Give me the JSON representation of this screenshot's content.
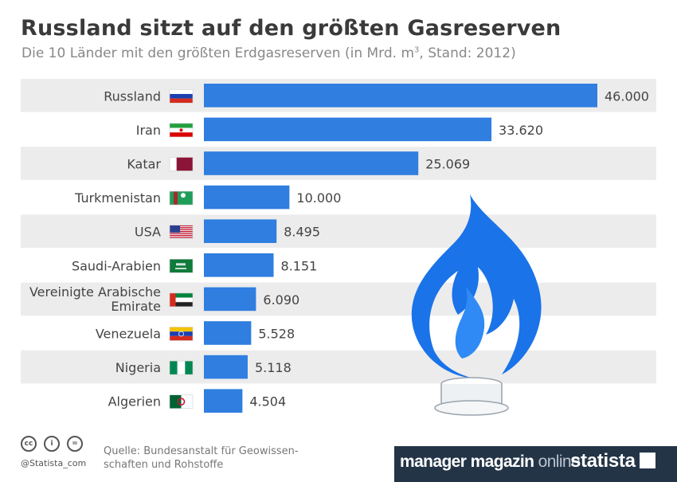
{
  "header": {
    "title": "Russland sitzt auf den größten Gasreserven",
    "subtitle_main": "Die 10 Länder mit den größten Erdgasreserven (in Mrd. m",
    "subtitle_sup": "3",
    "subtitle_end": ", Stand: 2012)"
  },
  "chart_data": {
    "type": "bar",
    "orientation": "horizontal",
    "title": "Russland sitzt auf den größten Gasreserven",
    "subtitle": "Die 10 Länder mit den größten Erdgasreserven (in Mrd. m³, Stand: 2012)",
    "unit": "Mrd. m³",
    "xlim": [
      0,
      46000
    ],
    "bar_color": "#2f7ee0",
    "band_color": "#ececec",
    "categories": [
      "Russland",
      "Iran",
      "Katar",
      "Turkmenistan",
      "USA",
      "Saudi-Arabien",
      "Vereinigte Arabische Emirate",
      "Venezuela",
      "Nigeria",
      "Algerien"
    ],
    "label_lines": [
      [
        "Russland"
      ],
      [
        "Iran"
      ],
      [
        "Katar"
      ],
      [
        "Turkmenistan"
      ],
      [
        "USA"
      ],
      [
        "Saudi-Arabien"
      ],
      [
        "Vereinigte Arabische",
        "Emirate"
      ],
      [
        "Venezuela"
      ],
      [
        "Nigeria"
      ],
      [
        "Algerien"
      ]
    ],
    "values": [
      46000,
      33620,
      25069,
      10000,
      8495,
      8151,
      6090,
      5528,
      5118,
      4504
    ],
    "value_labels": [
      "46.000",
      "33.620",
      "25.069",
      "10.000",
      "8.495",
      "8.151",
      "6.090",
      "5.528",
      "5.118",
      "4.504"
    ],
    "flags": [
      "russia-flag-icon",
      "iran-flag-icon",
      "qatar-flag-icon",
      "turkmenistan-flag-icon",
      "usa-flag-icon",
      "saudi-arabia-flag-icon",
      "uae-flag-icon",
      "venezuela-flag-icon",
      "nigeria-flag-icon",
      "algeria-flag-icon"
    ]
  },
  "footer": {
    "source_line1": "Quelle: Bundesanstalt für Geowissen-",
    "source_line2": "schaften und Rohstoffe",
    "handle": "@Statista_com",
    "mm_brand": "manager magazin ",
    "mm_online": "online",
    "statista": "statista",
    "cc_icons": [
      "cc-icon",
      "by-icon",
      "nd-icon"
    ],
    "cc_labels": [
      "cc",
      "i",
      "="
    ]
  },
  "colors": {
    "flame": "#1a73e8",
    "flame_inner": "#2f8af5",
    "footer_bg": "#243447"
  }
}
